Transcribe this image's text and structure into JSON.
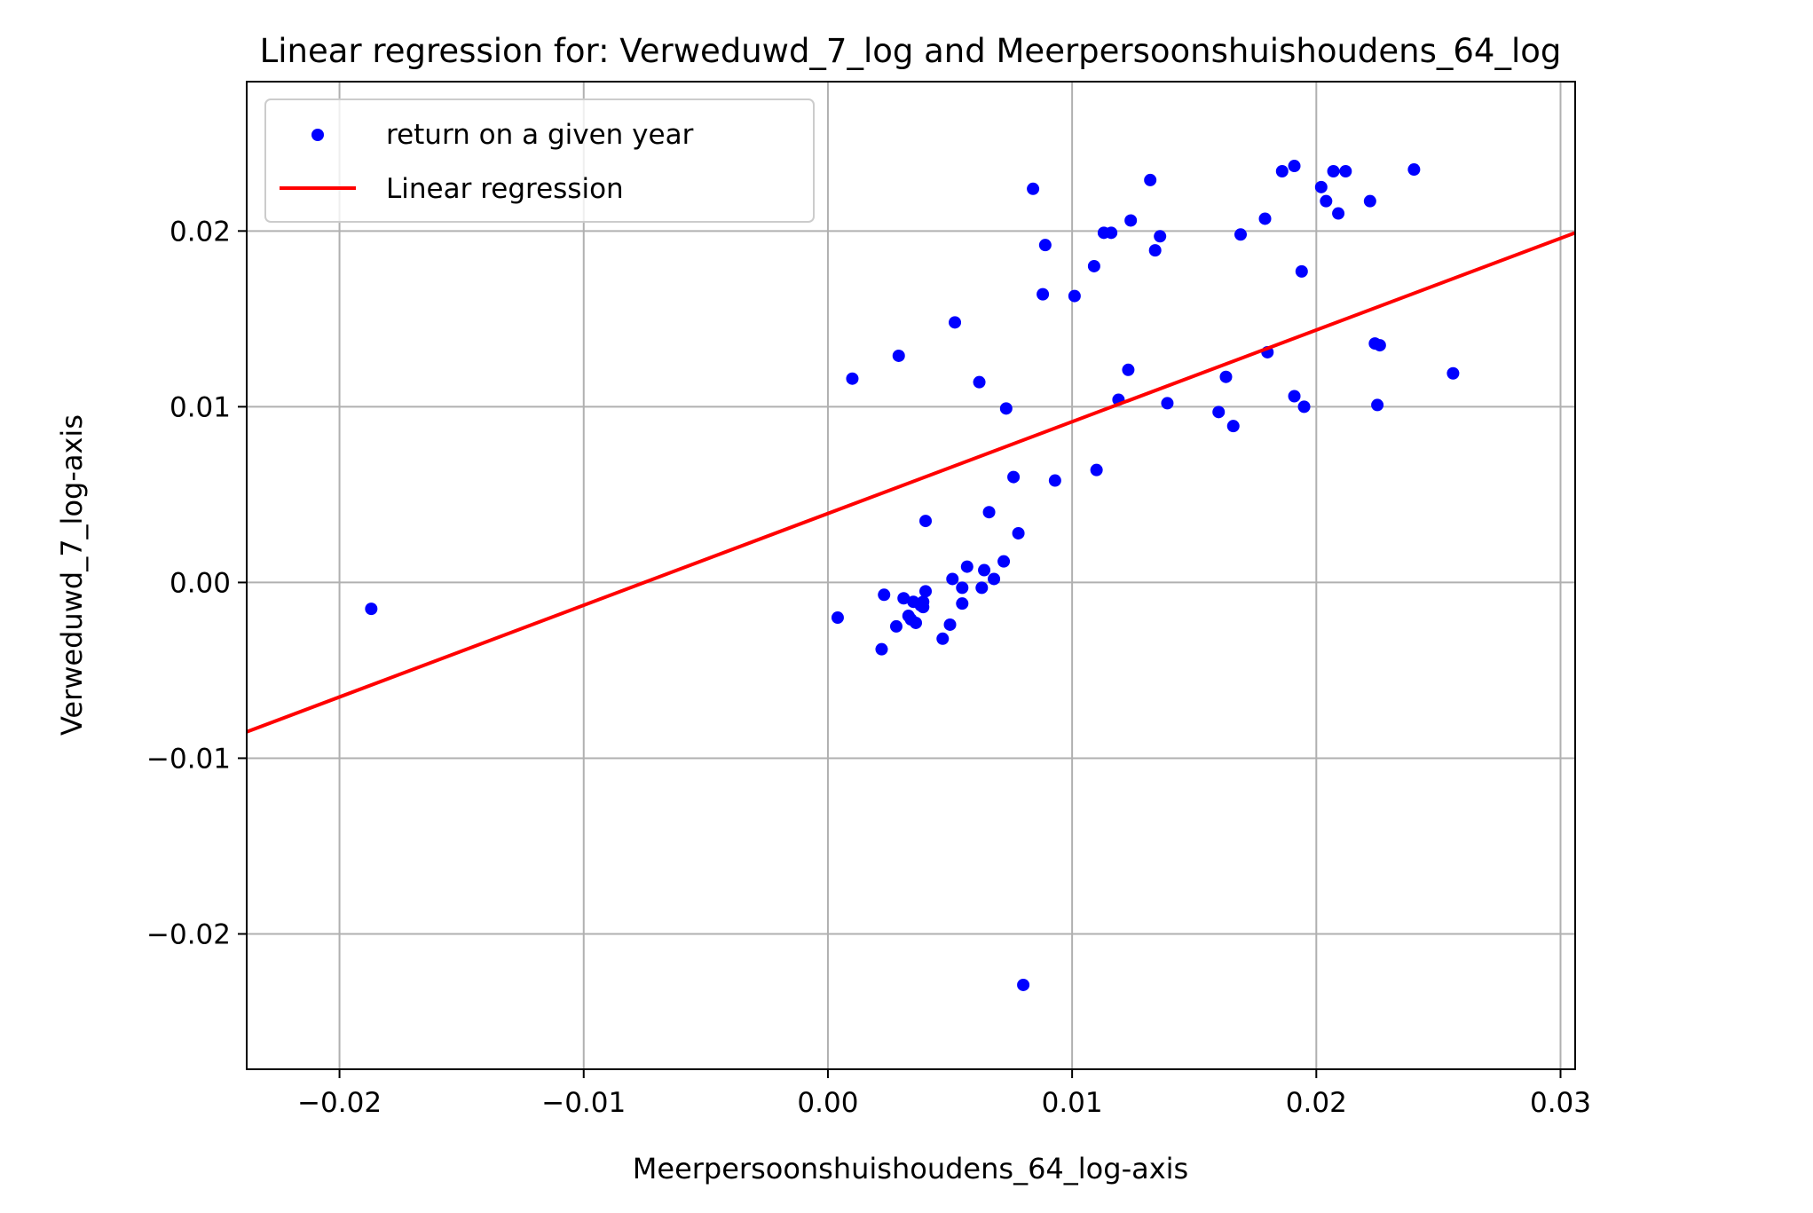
{
  "chart_data": {
    "type": "scatter",
    "title": "Linear regression for: Verweduwd_7_log and Meerpersoonshuishoudens_64_log",
    "xlabel": "Meerpersoonshuishoudens_64_log-axis",
    "ylabel": "Verweduwd_7_log-axis",
    "xlim": [
      -0.0238,
      0.0306
    ],
    "ylim": [
      -0.0277,
      0.0285
    ],
    "xticks": [
      -0.02,
      -0.01,
      0.0,
      0.01,
      0.02,
      0.03
    ],
    "xtick_labels": [
      "−0.02",
      "−0.01",
      "0.00",
      "0.01",
      "0.02",
      "0.03"
    ],
    "yticks": [
      -0.02,
      -0.01,
      0.0,
      0.01,
      0.02
    ],
    "ytick_labels": [
      "−0.02",
      "−0.01",
      "0.00",
      "0.01",
      "0.02"
    ],
    "grid": true,
    "legend_position": "top-left",
    "series": [
      {
        "name": "return on a given year",
        "kind": "scatter",
        "color": "#0000ff",
        "points": [
          [
            -0.0187,
            -0.0015
          ],
          [
            0.0004,
            -0.002
          ],
          [
            0.001,
            0.0116
          ],
          [
            0.0022,
            -0.0038
          ],
          [
            0.0023,
            -0.0007
          ],
          [
            0.0028,
            -0.0025
          ],
          [
            0.0029,
            0.0129
          ],
          [
            0.0031,
            -0.0009
          ],
          [
            0.0033,
            -0.0019
          ],
          [
            0.0034,
            -0.0021
          ],
          [
            0.0035,
            -0.0011
          ],
          [
            0.0036,
            -0.0023
          ],
          [
            0.0038,
            -0.0013
          ],
          [
            0.0039,
            -0.0014
          ],
          [
            0.0039,
            -0.0011
          ],
          [
            0.004,
            -0.0005
          ],
          [
            0.004,
            0.0035
          ],
          [
            0.0047,
            -0.0032
          ],
          [
            0.005,
            -0.0024
          ],
          [
            0.0051,
            0.0002
          ],
          [
            0.0052,
            0.0148
          ],
          [
            0.0055,
            -0.0003
          ],
          [
            0.0055,
            -0.0012
          ],
          [
            0.0057,
            0.0009
          ],
          [
            0.0062,
            0.0114
          ],
          [
            0.0063,
            -0.0003
          ],
          [
            0.0064,
            0.0007
          ],
          [
            0.0066,
            0.004
          ],
          [
            0.0068,
            0.0002
          ],
          [
            0.0072,
            0.0012
          ],
          [
            0.0073,
            0.0099
          ],
          [
            0.0076,
            0.006
          ],
          [
            0.0078,
            0.0028
          ],
          [
            0.008,
            -0.0229
          ],
          [
            0.0084,
            0.0224
          ],
          [
            0.0088,
            0.0164
          ],
          [
            0.0089,
            0.0192
          ],
          [
            0.0093,
            0.0058
          ],
          [
            0.0101,
            0.0163
          ],
          [
            0.0109,
            0.018
          ],
          [
            0.011,
            0.0064
          ],
          [
            0.0113,
            0.0199
          ],
          [
            0.0116,
            0.0199
          ],
          [
            0.0119,
            0.0104
          ],
          [
            0.0123,
            0.0121
          ],
          [
            0.0124,
            0.0206
          ],
          [
            0.0132,
            0.0229
          ],
          [
            0.0134,
            0.0189
          ],
          [
            0.0136,
            0.0197
          ],
          [
            0.0139,
            0.0102
          ],
          [
            0.016,
            0.0097
          ],
          [
            0.0163,
            0.0117
          ],
          [
            0.0166,
            0.0089
          ],
          [
            0.0169,
            0.0198
          ],
          [
            0.0179,
            0.0207
          ],
          [
            0.018,
            0.0131
          ],
          [
            0.0186,
            0.0234
          ],
          [
            0.0191,
            0.0237
          ],
          [
            0.0191,
            0.0106
          ],
          [
            0.0194,
            0.0177
          ],
          [
            0.0195,
            0.01
          ],
          [
            0.0202,
            0.0225
          ],
          [
            0.0204,
            0.0217
          ],
          [
            0.0207,
            0.0234
          ],
          [
            0.0209,
            0.021
          ],
          [
            0.0212,
            0.0234
          ],
          [
            0.0222,
            0.0217
          ],
          [
            0.0224,
            0.0136
          ],
          [
            0.0225,
            0.0101
          ],
          [
            0.0226,
            0.0135
          ],
          [
            0.024,
            0.0235
          ],
          [
            0.0256,
            0.0119
          ]
        ]
      },
      {
        "name": "Linear regression",
        "kind": "line",
        "color": "#ff0000",
        "points": [
          [
            -0.0238,
            -0.0085
          ],
          [
            0.0306,
            0.0199
          ]
        ]
      }
    ]
  }
}
